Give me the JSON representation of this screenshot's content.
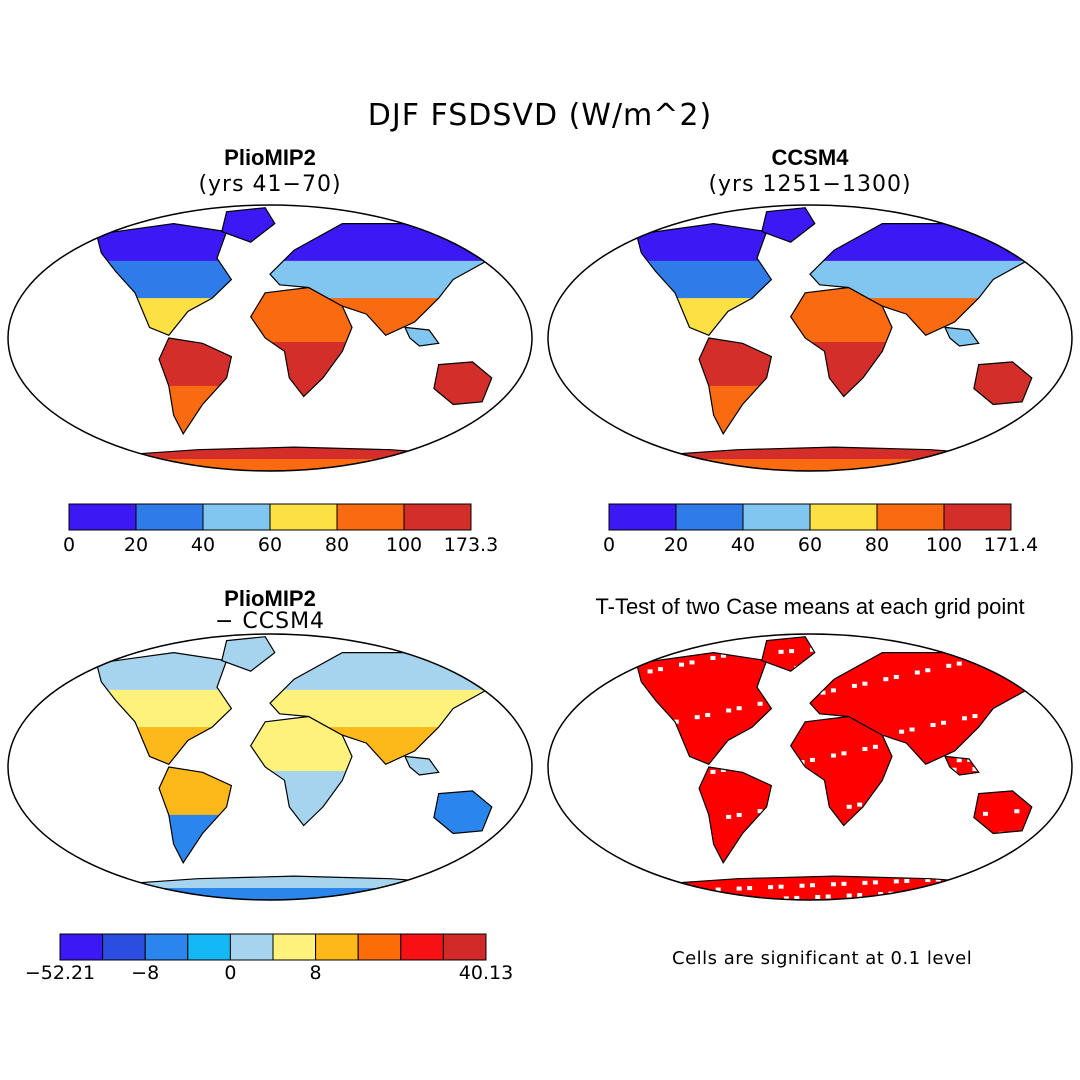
{
  "figure_title": "DJF FSDSVD (W/m^2)",
  "panels": [
    {
      "id": "pliomip2",
      "title": "PlioMIP2",
      "subtitle": "(yrs 41−70)",
      "colorbar": {
        "colors": [
          "#3c18f4",
          "#2f7ce8",
          "#80c6f0",
          "#fde043",
          "#fa6a10",
          "#d42e2a"
        ],
        "ticks": [
          "0",
          "20",
          "40",
          "60",
          "80",
          "100",
          "173.3"
        ]
      }
    },
    {
      "id": "ccsm4",
      "title": "CCSM4",
      "subtitle": "(yrs 1251−1300)",
      "colorbar": {
        "colors": [
          "#3c18f4",
          "#2f7ce8",
          "#80c6f0",
          "#fde043",
          "#fa6a10",
          "#d42e2a"
        ],
        "ticks": [
          "0",
          "20",
          "40",
          "60",
          "80",
          "100",
          "171.4"
        ]
      }
    },
    {
      "id": "difference",
      "title": "PlioMIP2",
      "subtitle": "− CCSM4",
      "colorbar": {
        "colors": [
          "#3c18f4",
          "#2b4ee0",
          "#2a86ec",
          "#14b8f4",
          "#a6d4ee",
          "#fff27c",
          "#fdb819",
          "#fc6d08",
          "#f81114",
          "#d22a28"
        ],
        "ticks": [
          "−52.21",
          "",
          "−8",
          "",
          "0",
          "",
          "8",
          "",
          "",
          "",
          "40.13"
        ]
      }
    },
    {
      "id": "ttest",
      "title": "T-Test of two Case means at each grid point",
      "note": "Cells are significant at 0.1 level",
      "signif_color": "#ff0000"
    }
  ]
}
